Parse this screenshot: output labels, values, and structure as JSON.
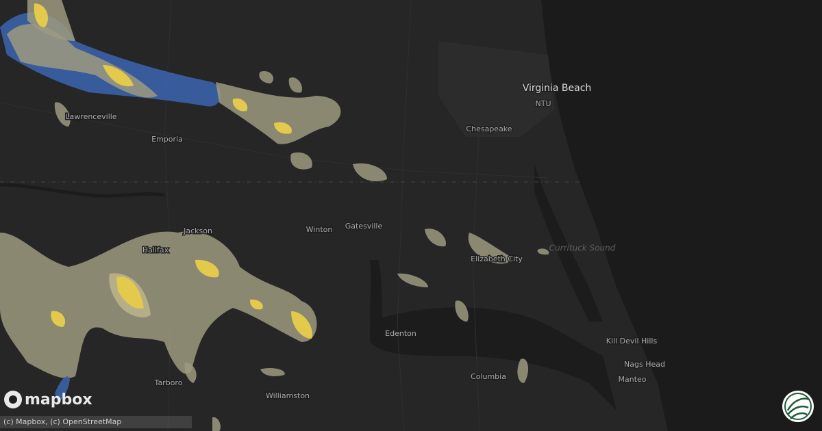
{
  "labels": [
    "Virginia Beach",
    "NTU",
    "Chesapeake",
    "Lawrenceville",
    "Emporia",
    "Winton",
    "Gatesville",
    "Jackson",
    "Halifax",
    "Elizabeth City",
    "Currituck Sound",
    "Edenton",
    "Kill Devil Hills",
    "Nags Head",
    "Manteo",
    "Columbia",
    "Tarboro",
    "Williamston"
  ],
  "logo": "mapbox",
  "attribution": "(c) Mapbox, (c) OpenStreetMap"
}
